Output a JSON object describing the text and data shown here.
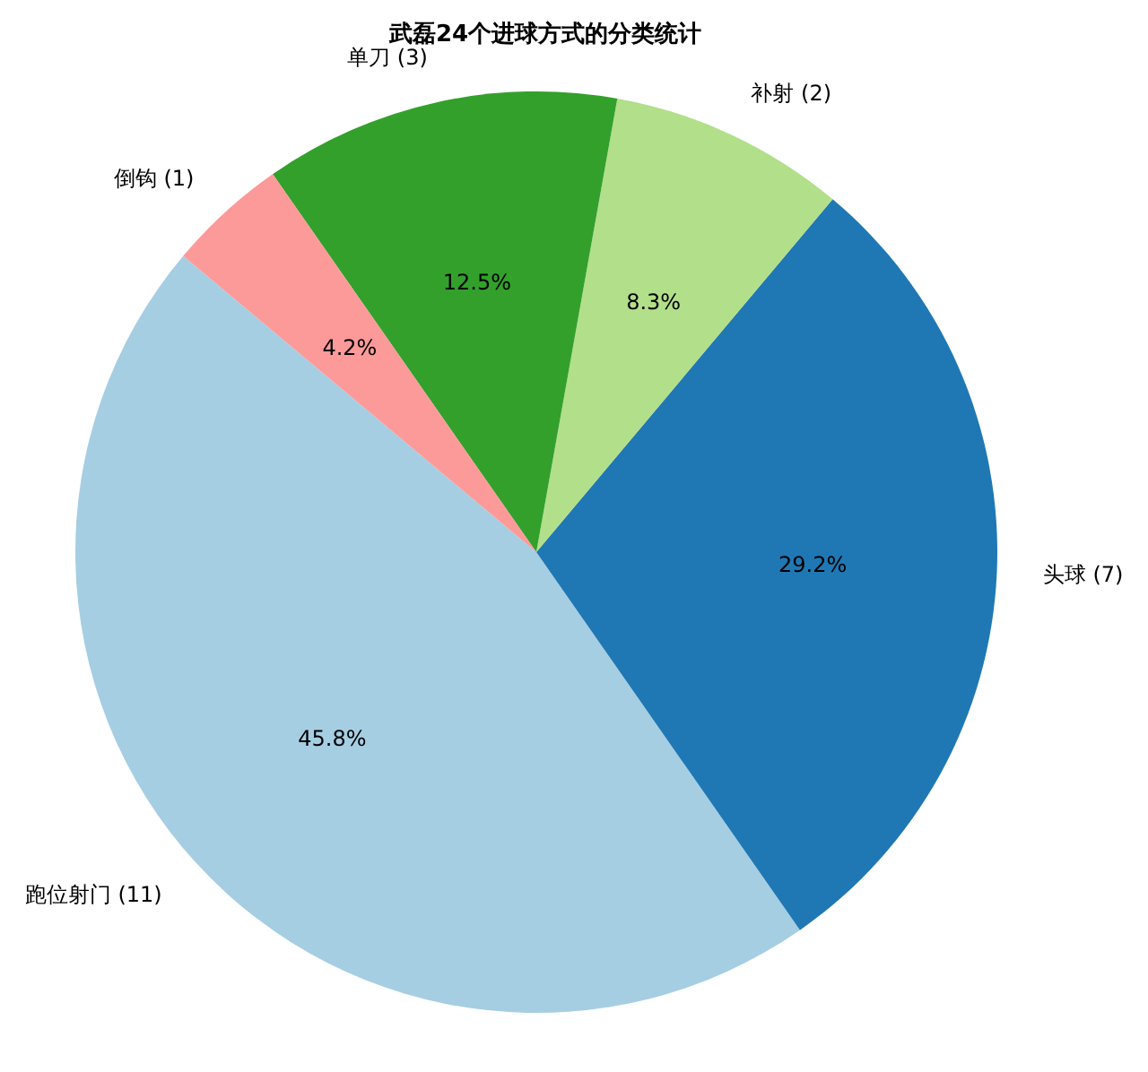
{
  "chart_data": {
    "type": "pie",
    "title": "武磊24个进球方式的分类统计",
    "categories": [
      "跑位射门 (11)",
      "头球 (7)",
      "补射 (2)",
      "单刀 (3)",
      "倒钩 (1)"
    ],
    "values": [
      45.8,
      29.2,
      8.3,
      12.5,
      4.2
    ],
    "colors": [
      "#a6cee3",
      "#1f78b4",
      "#b2df8a",
      "#33a02c",
      "#fb9a99"
    ],
    "value_labels": [
      "45.8%",
      "29.2%",
      "8.3%",
      "12.5%",
      "4.2%"
    ]
  }
}
